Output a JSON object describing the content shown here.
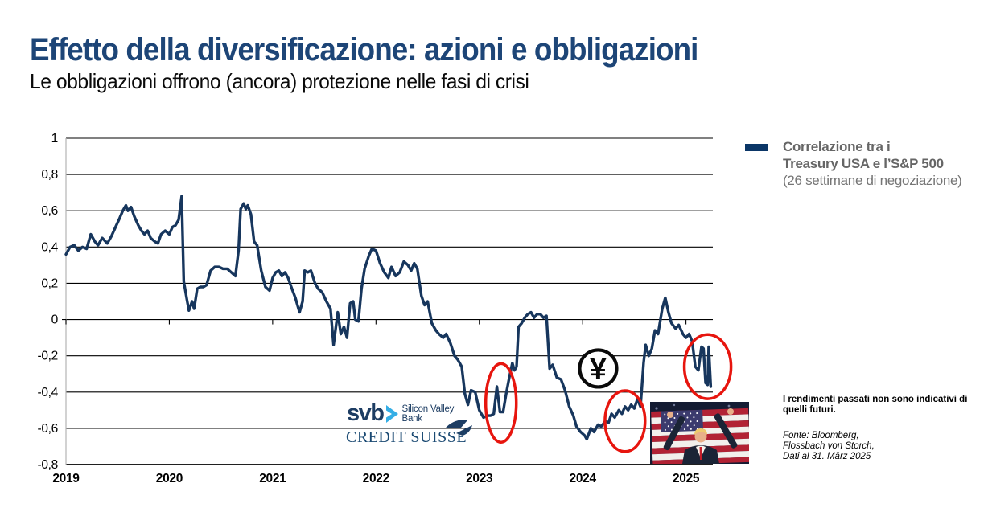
{
  "page": {
    "title": "Effetto della diversificazione: azioni e obbligazioni",
    "subtitle": "Le obbligazioni offrono (ancora) protezione nelle fasi di crisi"
  },
  "legend": {
    "line1": "Correlazione tra i",
    "line2": "Treasury USA e l’S&P 500",
    "line3": "(26 settimane di negoziazione)",
    "swatch_color": "#0b3667"
  },
  "notes": {
    "disclaimer": "I rendimenti passati non sono indicativi di quelli futuri.",
    "source_lines": [
      "Fonte: Bloomberg,",
      "Flossbach von Storch,",
      "Dati al 31. März 2025"
    ]
  },
  "logos": {
    "svb_short": "svb",
    "svb_line1": "Silicon Valley",
    "svb_line2": "Bank",
    "credit_suisse": "CREDIT SUISSE"
  },
  "colors": {
    "title_navy": "#1d4577",
    "line_navy": "#17365d",
    "legend_gray": "#666666",
    "annotation_red": "#e7150e",
    "svb_navy": "#1d3d63",
    "svb_cyan": "#35aee5",
    "grid_black": "#000000",
    "axis_gray": "#b3b3b3"
  },
  "chart_data": {
    "type": "line",
    "title": "Correlazione tra i Treasury USA e l’S&P 500 (26 settimane di negoziazione)",
    "xlabel": "",
    "ylabel": "",
    "xlim": [
      2019,
      2025.26
    ],
    "ylim": [
      -0.8,
      1
    ],
    "grid": "horizontal",
    "legend_position": "right-top",
    "x_ticks": [
      "2019",
      "2020",
      "2021",
      "2022",
      "2023",
      "2024",
      "2025"
    ],
    "x_tick_values": [
      2019,
      2020,
      2021,
      2022,
      2023,
      2024,
      2025
    ],
    "y_ticks": [
      {
        "v": 1,
        "label": "1"
      },
      {
        "v": 0.8,
        "label": "0,8"
      },
      {
        "v": 0.6,
        "label": "0,6"
      },
      {
        "v": 0.4,
        "label": "0,4"
      },
      {
        "v": 0.2,
        "label": "0,2"
      },
      {
        "v": 0,
        "label": "0"
      },
      {
        "v": -0.2,
        "label": "-0,2"
      },
      {
        "v": -0.4,
        "label": "-0,4"
      },
      {
        "v": -0.6,
        "label": "-0,6"
      },
      {
        "v": -0.8,
        "label": "-0,8"
      }
    ],
    "series": [
      {
        "name": "Correlazione tra i Treasury USA e l’S&P 500",
        "color": "#17365d",
        "points": [
          [
            2019.0,
            0.36
          ],
          [
            2019.04,
            0.4
          ],
          [
            2019.08,
            0.41
          ],
          [
            2019.12,
            0.38
          ],
          [
            2019.16,
            0.4
          ],
          [
            2019.2,
            0.39
          ],
          [
            2019.24,
            0.47
          ],
          [
            2019.28,
            0.43
          ],
          [
            2019.31,
            0.41
          ],
          [
            2019.35,
            0.45
          ],
          [
            2019.4,
            0.42
          ],
          [
            2019.44,
            0.46
          ],
          [
            2019.48,
            0.51
          ],
          [
            2019.52,
            0.56
          ],
          [
            2019.55,
            0.6
          ],
          [
            2019.58,
            0.63
          ],
          [
            2019.6,
            0.6
          ],
          [
            2019.63,
            0.62
          ],
          [
            2019.66,
            0.57
          ],
          [
            2019.7,
            0.52
          ],
          [
            2019.73,
            0.49
          ],
          [
            2019.76,
            0.47
          ],
          [
            2019.79,
            0.49
          ],
          [
            2019.82,
            0.45
          ],
          [
            2019.86,
            0.43
          ],
          [
            2019.89,
            0.42
          ],
          [
            2019.92,
            0.47
          ],
          [
            2019.96,
            0.49
          ],
          [
            2020.0,
            0.47
          ],
          [
            2020.03,
            0.51
          ],
          [
            2020.06,
            0.52
          ],
          [
            2020.09,
            0.55
          ],
          [
            2020.12,
            0.68
          ],
          [
            2020.14,
            0.21
          ],
          [
            2020.17,
            0.11
          ],
          [
            2020.19,
            0.05
          ],
          [
            2020.22,
            0.1
          ],
          [
            2020.24,
            0.06
          ],
          [
            2020.27,
            0.17
          ],
          [
            2020.3,
            0.18
          ],
          [
            2020.33,
            0.18
          ],
          [
            2020.36,
            0.19
          ],
          [
            2020.4,
            0.27
          ],
          [
            2020.44,
            0.29
          ],
          [
            2020.48,
            0.29
          ],
          [
            2020.52,
            0.28
          ],
          [
            2020.56,
            0.28
          ],
          [
            2020.6,
            0.26
          ],
          [
            2020.64,
            0.24
          ],
          [
            2020.67,
            0.38
          ],
          [
            2020.69,
            0.61
          ],
          [
            2020.72,
            0.64
          ],
          [
            2020.74,
            0.61
          ],
          [
            2020.76,
            0.63
          ],
          [
            2020.79,
            0.58
          ],
          [
            2020.82,
            0.43
          ],
          [
            2020.85,
            0.41
          ],
          [
            2020.89,
            0.27
          ],
          [
            2020.93,
            0.18
          ],
          [
            2020.97,
            0.16
          ],
          [
            2021.0,
            0.23
          ],
          [
            2021.03,
            0.26
          ],
          [
            2021.06,
            0.27
          ],
          [
            2021.09,
            0.24
          ],
          [
            2021.12,
            0.26
          ],
          [
            2021.15,
            0.23
          ],
          [
            2021.18,
            0.18
          ],
          [
            2021.22,
            0.12
          ],
          [
            2021.26,
            0.04
          ],
          [
            2021.29,
            0.1
          ],
          [
            2021.31,
            0.27
          ],
          [
            2021.34,
            0.26
          ],
          [
            2021.37,
            0.27
          ],
          [
            2021.41,
            0.2
          ],
          [
            2021.44,
            0.17
          ],
          [
            2021.48,
            0.15
          ],
          [
            2021.52,
            0.1
          ],
          [
            2021.56,
            0.06
          ],
          [
            2021.59,
            -0.14
          ],
          [
            2021.63,
            0.04
          ],
          [
            2021.66,
            -0.08
          ],
          [
            2021.69,
            -0.04
          ],
          [
            2021.72,
            -0.1
          ],
          [
            2021.75,
            0.09
          ],
          [
            2021.78,
            0.1
          ],
          [
            2021.8,
            0.0
          ],
          [
            2021.83,
            -0.01
          ],
          [
            2021.86,
            0.17
          ],
          [
            2021.89,
            0.28
          ],
          [
            2021.93,
            0.35
          ],
          [
            2021.96,
            0.39
          ],
          [
            2022.0,
            0.38
          ],
          [
            2022.04,
            0.31
          ],
          [
            2022.08,
            0.26
          ],
          [
            2022.12,
            0.23
          ],
          [
            2022.15,
            0.29
          ],
          [
            2022.19,
            0.24
          ],
          [
            2022.23,
            0.26
          ],
          [
            2022.27,
            0.32
          ],
          [
            2022.31,
            0.3
          ],
          [
            2022.34,
            0.27
          ],
          [
            2022.37,
            0.31
          ],
          [
            2022.4,
            0.28
          ],
          [
            2022.44,
            0.13
          ],
          [
            2022.47,
            0.08
          ],
          [
            2022.5,
            0.1
          ],
          [
            2022.54,
            -0.02
          ],
          [
            2022.58,
            -0.06
          ],
          [
            2022.61,
            -0.08
          ],
          [
            2022.65,
            -0.1
          ],
          [
            2022.68,
            -0.08
          ],
          [
            2022.72,
            -0.13
          ],
          [
            2022.76,
            -0.2
          ],
          [
            2022.79,
            -0.22
          ],
          [
            2022.83,
            -0.26
          ],
          [
            2022.86,
            -0.41
          ],
          [
            2022.89,
            -0.47
          ],
          [
            2022.92,
            -0.39
          ],
          [
            2022.96,
            -0.4
          ],
          [
            2023.0,
            -0.5
          ],
          [
            2023.04,
            -0.54
          ],
          [
            2023.08,
            -0.53
          ],
          [
            2023.11,
            -0.53
          ],
          [
            2023.14,
            -0.52
          ],
          [
            2023.17,
            -0.37
          ],
          [
            2023.2,
            -0.51
          ],
          [
            2023.23,
            -0.51
          ],
          [
            2023.26,
            -0.41
          ],
          [
            2023.29,
            -0.32
          ],
          [
            2023.32,
            -0.24
          ],
          [
            2023.34,
            -0.28
          ],
          [
            2023.36,
            -0.26
          ],
          [
            2023.38,
            -0.04
          ],
          [
            2023.41,
            -0.02
          ],
          [
            2023.44,
            0.01
          ],
          [
            2023.47,
            0.03
          ],
          [
            2023.5,
            0.04
          ],
          [
            2023.53,
            0.01
          ],
          [
            2023.56,
            0.03
          ],
          [
            2023.59,
            0.03
          ],
          [
            2023.62,
            0.01
          ],
          [
            2023.65,
            0.02
          ],
          [
            2023.68,
            -0.27
          ],
          [
            2023.71,
            -0.25
          ],
          [
            2023.75,
            -0.32
          ],
          [
            2023.79,
            -0.33
          ],
          [
            2023.83,
            -0.39
          ],
          [
            2023.87,
            -0.48
          ],
          [
            2023.91,
            -0.53
          ],
          [
            2023.94,
            -0.59
          ],
          [
            2023.98,
            -0.62
          ],
          [
            2024.02,
            -0.64
          ],
          [
            2024.04,
            -0.66
          ],
          [
            2024.08,
            -0.6
          ],
          [
            2024.11,
            -0.62
          ],
          [
            2024.15,
            -0.58
          ],
          [
            2024.18,
            -0.59
          ],
          [
            2024.22,
            -0.56
          ],
          [
            2024.25,
            -0.57
          ],
          [
            2024.28,
            -0.52
          ],
          [
            2024.31,
            -0.54
          ],
          [
            2024.35,
            -0.5
          ],
          [
            2024.38,
            -0.52
          ],
          [
            2024.41,
            -0.48
          ],
          [
            2024.44,
            -0.5
          ],
          [
            2024.47,
            -0.47
          ],
          [
            2024.5,
            -0.49
          ],
          [
            2024.53,
            -0.44
          ],
          [
            2024.56,
            -0.48
          ],
          [
            2024.59,
            -0.24
          ],
          [
            2024.61,
            -0.14
          ],
          [
            2024.64,
            -0.2
          ],
          [
            2024.67,
            -0.16
          ],
          [
            2024.7,
            -0.06
          ],
          [
            2024.73,
            -0.08
          ],
          [
            2024.75,
            -0.01
          ],
          [
            2024.77,
            0.06
          ],
          [
            2024.8,
            0.12
          ],
          [
            2024.83,
            0.04
          ],
          [
            2024.86,
            -0.02
          ],
          [
            2024.9,
            -0.05
          ],
          [
            2024.93,
            -0.03
          ],
          [
            2024.97,
            -0.08
          ],
          [
            2025.0,
            -0.1
          ],
          [
            2025.03,
            -0.08
          ],
          [
            2025.06,
            -0.12
          ],
          [
            2025.09,
            -0.26
          ],
          [
            2025.12,
            -0.28
          ],
          [
            2025.15,
            -0.15
          ],
          [
            2025.17,
            -0.16
          ],
          [
            2025.19,
            -0.35
          ],
          [
            2025.21,
            -0.36
          ],
          [
            2025.22,
            -0.15
          ],
          [
            2025.24,
            -0.37
          ]
        ]
      }
    ],
    "annotations": [
      {
        "type": "ellipse",
        "name": "highlight-ellipse-svb-crisis",
        "x": 2023.21,
        "y": -0.46,
        "rx": 0.148,
        "ry": 0.217,
        "color": "#e7150e"
      },
      {
        "type": "ellipse",
        "name": "highlight-ellipse-2024",
        "x": 2024.41,
        "y": -0.56,
        "rx": 0.194,
        "ry": 0.168,
        "color": "#e7150e"
      },
      {
        "type": "ellipse",
        "name": "highlight-ellipse-2025",
        "x": 2025.21,
        "y": -0.26,
        "rx": 0.226,
        "ry": 0.177,
        "color": "#e7150e"
      },
      {
        "type": "circled-symbol",
        "name": "yen-badge",
        "symbol": "¥",
        "x": 2024.15,
        "y": -0.27,
        "r": 0.102,
        "color": "#0a0a0a"
      }
    ]
  }
}
